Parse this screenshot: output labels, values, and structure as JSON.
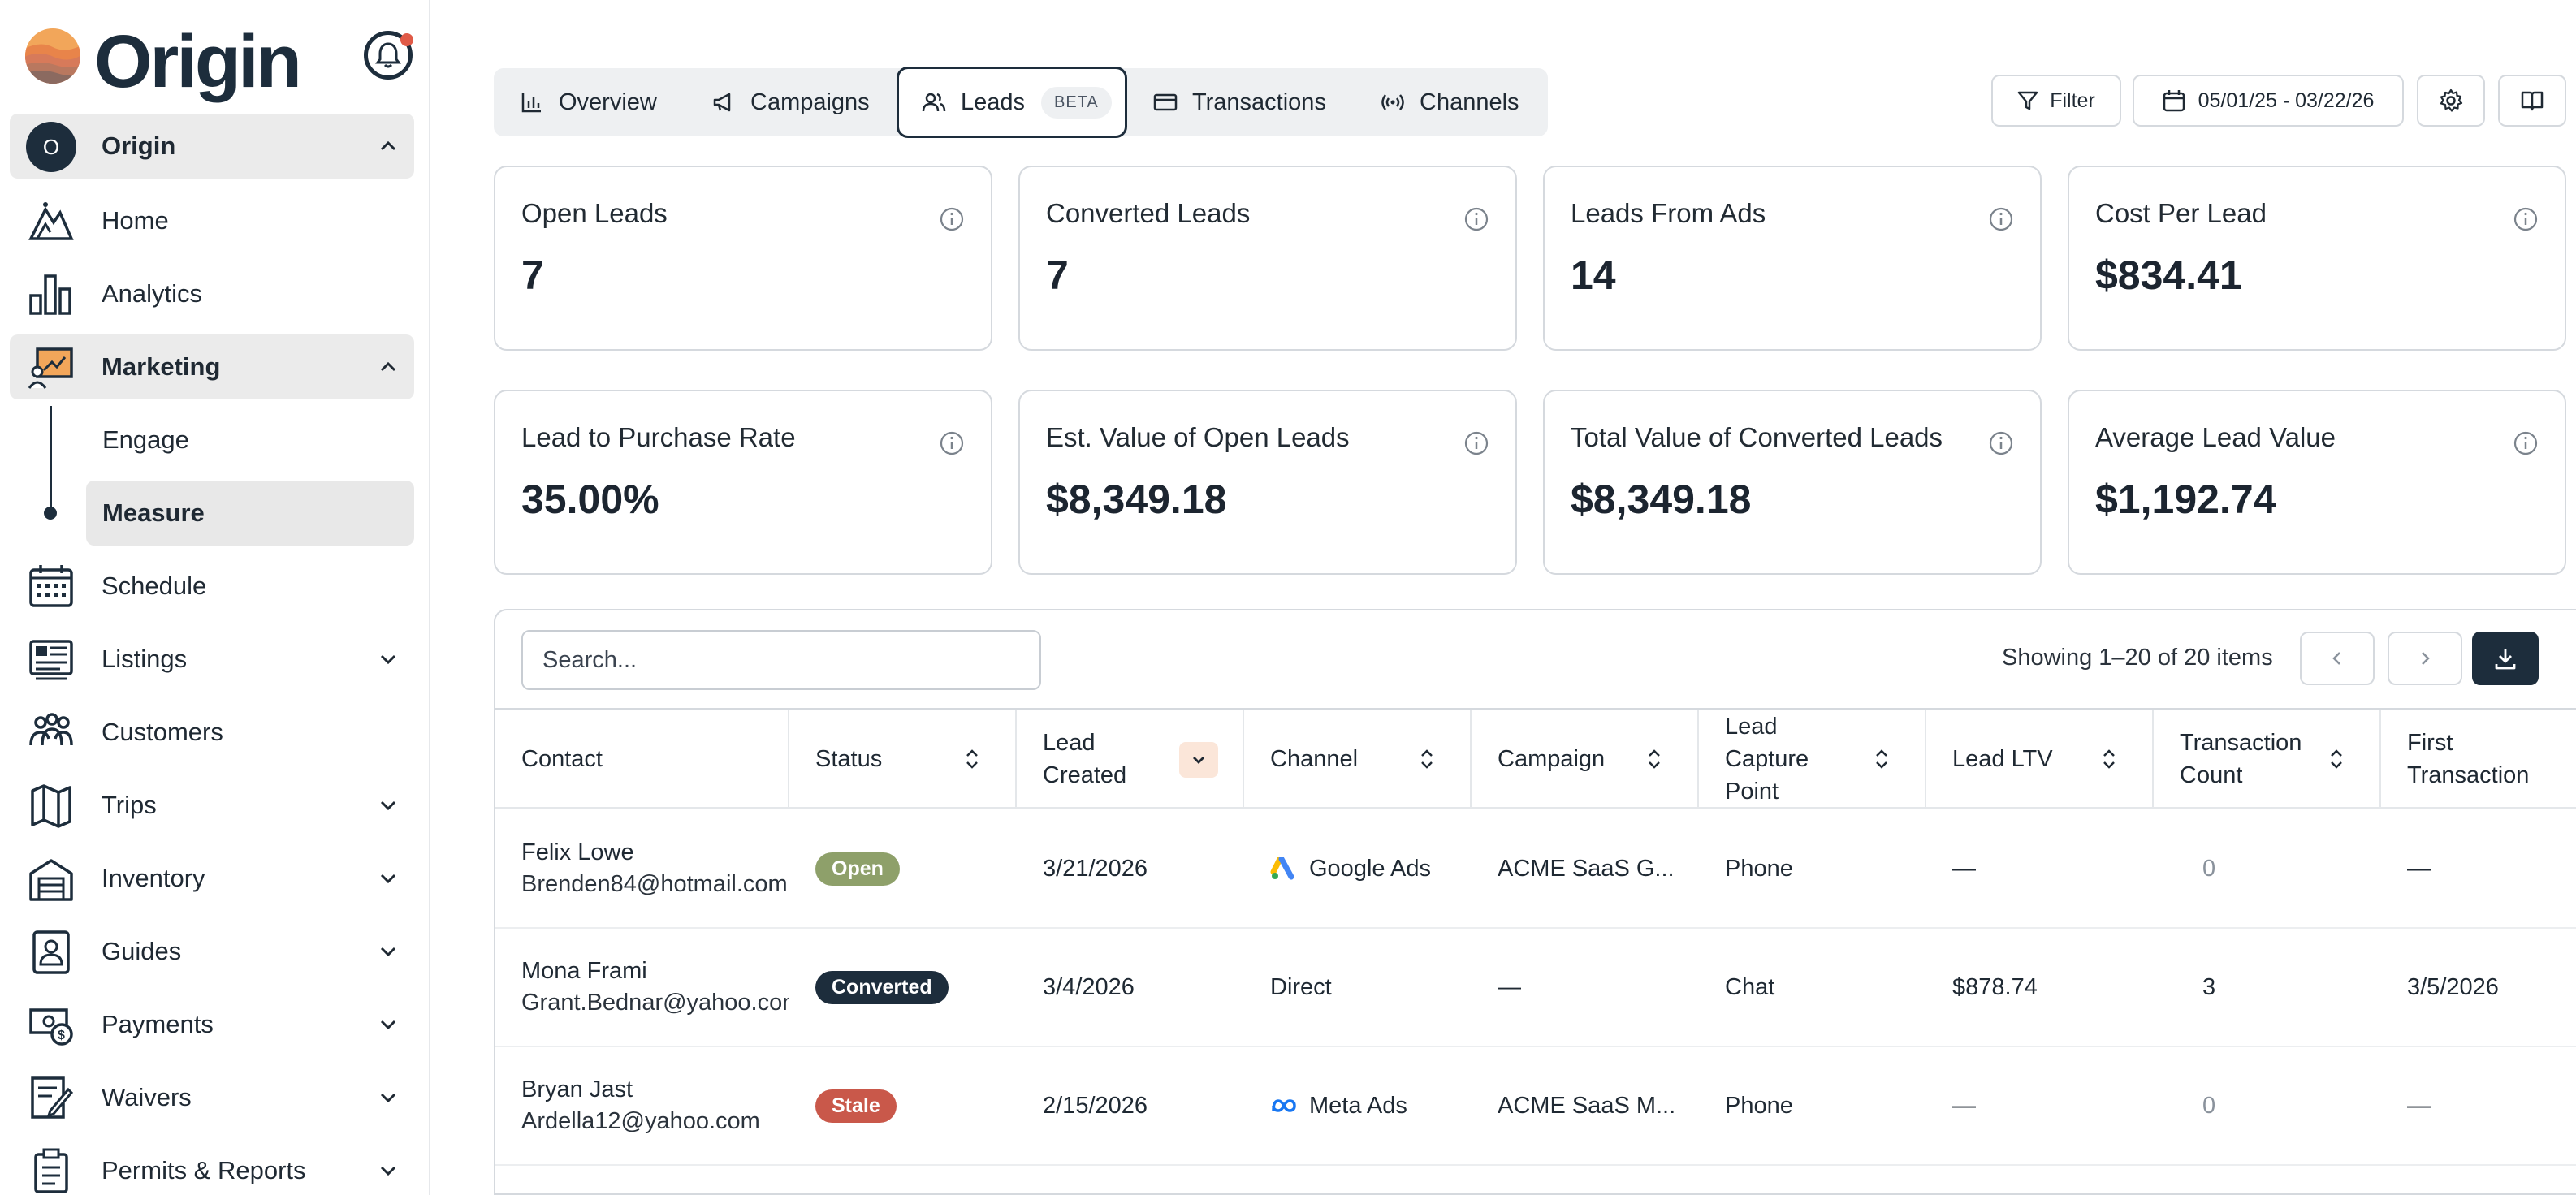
{
  "brand": {
    "name": "Origin"
  },
  "sidebar": {
    "org": {
      "initial": "O",
      "label": "Origin"
    },
    "items": [
      {
        "label": "Home",
        "icon": "mountain-icon"
      },
      {
        "label": "Analytics",
        "icon": "bar-chart-icon"
      },
      {
        "label": "Marketing",
        "icon": "marketing-icon"
      },
      {
        "label": "Schedule",
        "icon": "calendar-icon"
      },
      {
        "label": "Listings",
        "icon": "listings-icon"
      },
      {
        "label": "Customers",
        "icon": "users-icon"
      },
      {
        "label": "Trips",
        "icon": "map-icon"
      },
      {
        "label": "Inventory",
        "icon": "warehouse-icon"
      },
      {
        "label": "Guides",
        "icon": "guide-badge-icon"
      },
      {
        "label": "Payments",
        "icon": "payments-icon"
      },
      {
        "label": "Waivers",
        "icon": "waiver-icon"
      },
      {
        "label": "Permits & Reports",
        "icon": "clipboard-icon"
      }
    ],
    "marketing_sub": [
      {
        "label": "Engage"
      },
      {
        "label": "Measure"
      }
    ]
  },
  "tabs": [
    {
      "label": "Overview",
      "icon": "bar-chart-icon"
    },
    {
      "label": "Campaigns",
      "icon": "megaphone-icon"
    },
    {
      "label": "Leads",
      "icon": "users-icon",
      "badge": "BETA"
    },
    {
      "label": "Transactions",
      "icon": "credit-card-icon"
    },
    {
      "label": "Channels",
      "icon": "broadcast-icon"
    }
  ],
  "toolbar": {
    "filter_label": "Filter",
    "date_range": "05/01/25 - 03/22/26"
  },
  "metrics": [
    {
      "title": "Open Leads",
      "value": "7"
    },
    {
      "title": "Converted Leads",
      "value": "7"
    },
    {
      "title": "Leads From Ads",
      "value": "14"
    },
    {
      "title": "Cost Per Lead",
      "value": "$834.41"
    },
    {
      "title": "Lead to Purchase Rate",
      "value": "35.00%"
    },
    {
      "title": "Est. Value of Open Leads",
      "value": "$8,349.18"
    },
    {
      "title": "Total Value of Converted Leads",
      "value": "$8,349.18"
    },
    {
      "title": "Average Lead Value",
      "value": "$1,192.74"
    }
  ],
  "table": {
    "search_placeholder": "Search...",
    "showing": "Showing 1–20 of 20 items",
    "columns": [
      "Contact",
      "Status",
      "Lead Created",
      "Channel",
      "Campaign",
      "Lead Capture Point",
      "Lead LTV",
      "Transaction Count",
      "First Transaction"
    ],
    "rows": [
      {
        "name": "Felix Lowe",
        "email": "Brenden84@hotmail.com",
        "status": "Open",
        "status_color": "#8ea06a",
        "created": "3/21/2026",
        "channel": "Google Ads",
        "channel_icon": "google-ads-icon",
        "campaign": "ACME SaaS G...",
        "capture": "Phone",
        "ltv": "—",
        "txn_count": "0",
        "first_txn": "—"
      },
      {
        "name": "Mona Frami",
        "email": "Grant.Bednar@yahoo.com",
        "status": "Converted",
        "status_color": "#1d2d3c",
        "created": "3/4/2026",
        "channel": "Direct",
        "channel_icon": "",
        "campaign": "—",
        "capture": "Chat",
        "ltv": "$878.74",
        "txn_count": "3",
        "first_txn": "3/5/2026"
      },
      {
        "name": "Bryan Jast",
        "email": "Ardella12@yahoo.com",
        "status": "Stale",
        "status_color": "#c9584a",
        "created": "2/15/2026",
        "channel": "Meta Ads",
        "channel_icon": "meta-icon",
        "campaign": "ACME SaaS M...",
        "capture": "Phone",
        "ltv": "—",
        "txn_count": "0",
        "first_txn": "—"
      }
    ]
  }
}
